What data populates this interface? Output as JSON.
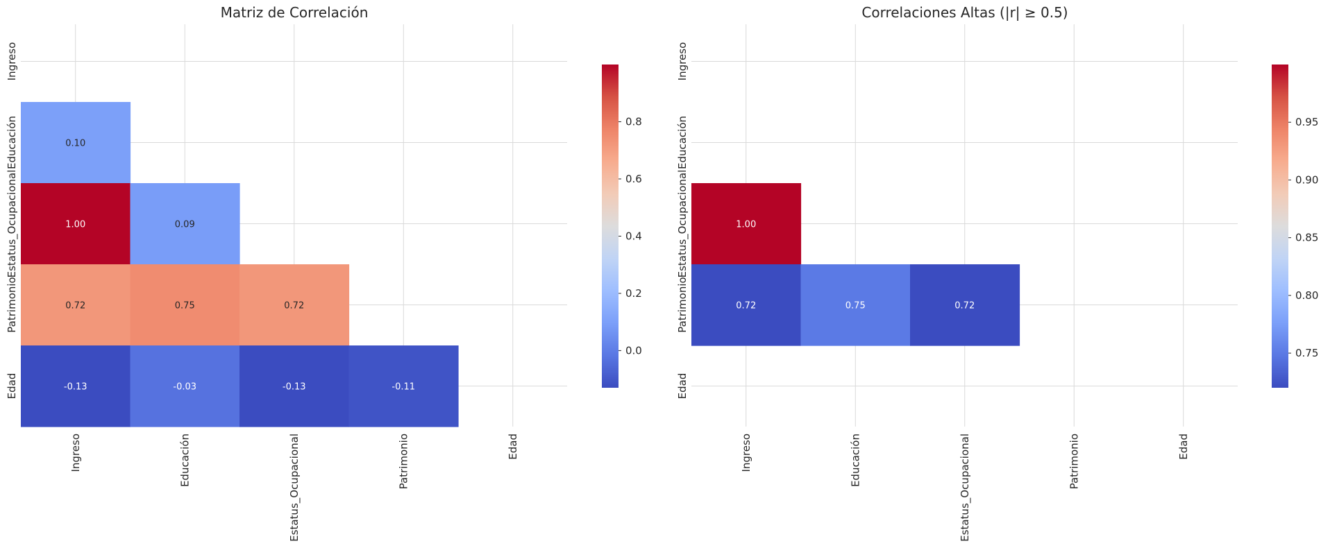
{
  "chart_data": [
    {
      "type": "heatmap",
      "title": "Matriz de Correlación",
      "variables": [
        "Ingreso",
        "Educación",
        "Estatus_Ocupacional",
        "Patrimonio",
        "Edad"
      ],
      "mask": "upper-triangle-including-diagonal",
      "cells": [
        {
          "row": "Educación",
          "col": "Ingreso",
          "value": 0.1,
          "label": "0.10"
        },
        {
          "row": "Estatus_Ocupacional",
          "col": "Ingreso",
          "value": 1.0,
          "label": "1.00"
        },
        {
          "row": "Estatus_Ocupacional",
          "col": "Educación",
          "value": 0.09,
          "label": "0.09"
        },
        {
          "row": "Patrimonio",
          "col": "Ingreso",
          "value": 0.72,
          "label": "0.72"
        },
        {
          "row": "Patrimonio",
          "col": "Educación",
          "value": 0.75,
          "label": "0.75"
        },
        {
          "row": "Patrimonio",
          "col": "Estatus_Ocupacional",
          "value": 0.72,
          "label": "0.72"
        },
        {
          "row": "Edad",
          "col": "Ingreso",
          "value": -0.13,
          "label": "-0.13"
        },
        {
          "row": "Edad",
          "col": "Educación",
          "value": -0.03,
          "label": "-0.03"
        },
        {
          "row": "Edad",
          "col": "Estatus_Ocupacional",
          "value": -0.13,
          "label": "-0.13"
        },
        {
          "row": "Edad",
          "col": "Patrimonio",
          "value": -0.11,
          "label": "-0.11"
        }
      ],
      "colormap": "coolwarm",
      "vmin": -0.13,
      "vmax": 1.0,
      "colorbar_ticks": [
        0.0,
        0.2,
        0.4,
        0.6,
        0.8
      ],
      "colorbar_tick_labels": [
        "0.0",
        "0.2",
        "0.4",
        "0.6",
        "0.8"
      ]
    },
    {
      "type": "heatmap",
      "title": "Correlaciones Altas (|r| ≥ 0.5)",
      "variables": [
        "Ingreso",
        "Educación",
        "Estatus_Ocupacional",
        "Patrimonio",
        "Edad"
      ],
      "mask": "upper-triangle-including-diagonal and |r| < 0.5",
      "cells": [
        {
          "row": "Estatus_Ocupacional",
          "col": "Ingreso",
          "value": 1.0,
          "label": "1.00"
        },
        {
          "row": "Patrimonio",
          "col": "Ingreso",
          "value": 0.72,
          "label": "0.72"
        },
        {
          "row": "Patrimonio",
          "col": "Educación",
          "value": 0.75,
          "label": "0.75"
        },
        {
          "row": "Patrimonio",
          "col": "Estatus_Ocupacional",
          "value": 0.72,
          "label": "0.72"
        }
      ],
      "colormap": "coolwarm",
      "vmin": 0.72,
      "vmax": 1.0,
      "colorbar_ticks": [
        0.75,
        0.8,
        0.85,
        0.9,
        0.95
      ],
      "colorbar_tick_labels": [
        "0.75",
        "0.80",
        "0.85",
        "0.90",
        "0.95"
      ]
    }
  ]
}
